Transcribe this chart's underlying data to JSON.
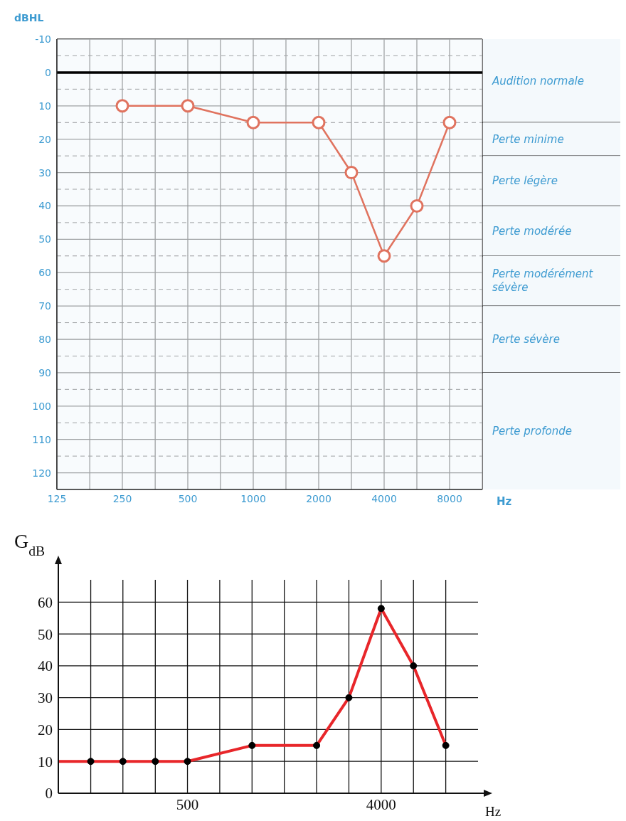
{
  "chart_data": [
    {
      "type": "line",
      "xlabel": "Hz",
      "ylabel": "dBHL",
      "log": "x",
      "grid": true,
      "marker": "circle",
      "x": [
        250,
        500,
        1000,
        2000,
        2828,
        4000,
        5657,
        8000
      ],
      "series": [
        {
          "color": "#e0735f",
          "values": [
            10,
            10,
            15,
            15,
            30,
            55,
            40,
            15
          ]
        }
      ],
      "xlim": [
        125,
        11314
      ],
      "xticks": [
        125,
        {
          "value": 177,
          "label": null
        },
        250,
        {
          "value": 354,
          "label": null
        },
        500,
        {
          "value": 707,
          "label": null
        },
        1000,
        {
          "value": 1414,
          "label": null
        },
        2000,
        {
          "value": 2828,
          "label": null
        },
        4000,
        {
          "value": 5657,
          "label": null
        },
        8000
      ],
      "ylim": [
        125,
        -10
      ],
      "yticks": [
        -10,
        {
          "value": -5,
          "label": null
        },
        0,
        {
          "value": 5,
          "label": null
        },
        10,
        {
          "value": 15,
          "label": null
        },
        20,
        {
          "value": 25,
          "label": null
        },
        30,
        {
          "value": 35,
          "label": null
        },
        40,
        {
          "value": 45,
          "label": null
        },
        50,
        {
          "value": 55,
          "label": null
        },
        60,
        {
          "value": 65,
          "label": null
        },
        70,
        {
          "value": 75,
          "label": null
        },
        80,
        {
          "value": 85,
          "label": null
        },
        90,
        {
          "value": 95,
          "label": null
        },
        100,
        {
          "value": 105,
          "label": null
        },
        110,
        {
          "value": 115,
          "label": null
        },
        120
      ],
      "ref_lines": [
        {
          "axis": "y",
          "value": 0,
          "color": "#000000"
        }
      ],
      "bands": [
        {
          "axis": "y",
          "from": -10,
          "to": 15,
          "label": "Audition normale",
          "color": "#f4f9fc"
        },
        {
          "axis": "y",
          "from": 15,
          "to": 25,
          "label": "Perte minime",
          "color": "#f4f9fc"
        },
        {
          "axis": "y",
          "from": 25,
          "to": 40,
          "label": "Perte légère",
          "color": "#f4f9fc"
        },
        {
          "axis": "y",
          "from": 40,
          "to": 55,
          "label": "Perte modérée",
          "color": "#f4f9fc"
        },
        {
          "axis": "y",
          "from": 55,
          "to": 70,
          "label": "Perte modérément sévère",
          "color": "#f4f9fc"
        },
        {
          "axis": "y",
          "from": 70,
          "to": 90,
          "label": "Perte sévère",
          "color": "#f4f9fc"
        },
        {
          "axis": "y",
          "from": 90,
          "to": 125,
          "label": "Perte profonde",
          "color": "#f4f9fc"
        }
      ]
    },
    {
      "type": "line",
      "xlabel": "Hz",
      "ylabel": "G$_{dB}$",
      "log": "x",
      "grid": true,
      "series": [
        {
          "type": "line",
          "color": "#e8262a",
          "marker": "none",
          "x": [
            125,
            177,
            250,
            354,
            500,
            1000,
            2000,
            2828,
            4000,
            5657,
            8000
          ],
          "values": [
            10,
            10,
            10,
            10,
            10,
            15,
            15,
            30,
            58,
            40,
            15
          ]
        },
        {
          "type": "scatter",
          "color": "#000000",
          "marker": "circle",
          "x": [
            177,
            250,
            354,
            500,
            1000,
            2000,
            2828,
            4000,
            5657,
            8000
          ],
          "values": [
            10,
            10,
            10,
            10,
            15,
            15,
            30,
            58,
            40,
            15
          ]
        }
      ],
      "xlim": [
        125,
        11314
      ],
      "xticks": [
        {
          "value": 177,
          "label": null
        },
        {
          "value": 250,
          "label": null
        },
        {
          "value": 354,
          "label": null
        },
        500,
        {
          "value": 707,
          "label": null
        },
        {
          "value": 1000,
          "label": null
        },
        {
          "value": 1414,
          "label": null
        },
        {
          "value": 2000,
          "label": null
        },
        {
          "value": 2828,
          "label": null
        },
        4000,
        {
          "value": 5657,
          "label": null
        },
        {
          "value": 8000,
          "label": null
        }
      ],
      "ylim": [
        0,
        67
      ],
      "yticks": [
        0,
        10,
        20,
        30,
        40,
        50,
        60
      ]
    }
  ]
}
